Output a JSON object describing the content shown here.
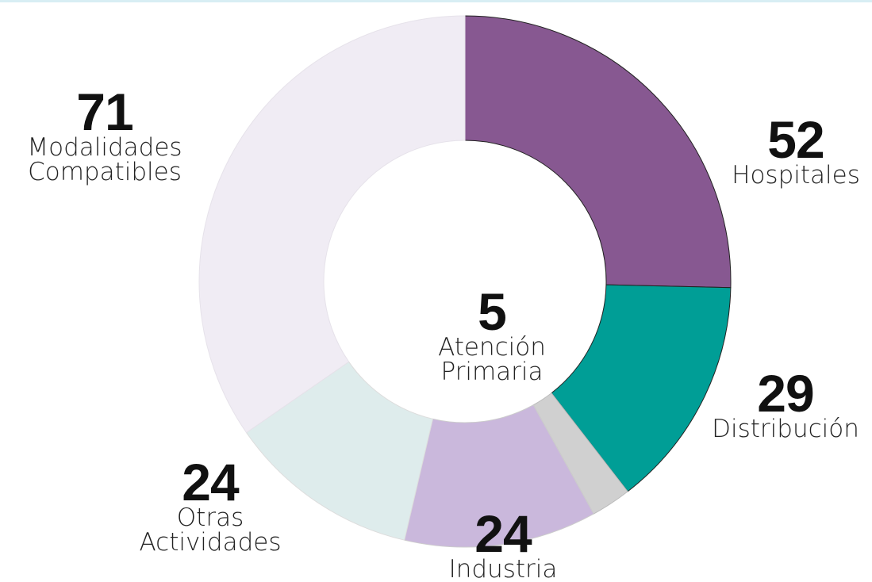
{
  "chart_data": {
    "type": "donut",
    "categories": [
      "Hospitales",
      "Distribución",
      "Atención Primaria",
      "Industria",
      "Otras Actividades",
      "Modalidades Compatibles"
    ],
    "values": [
      52,
      29,
      5,
      24,
      24,
      71
    ],
    "colors": [
      "#875891",
      "#009e96",
      "#d0d0d0",
      "#cab8dc",
      "#deecec",
      "#f0ecf4"
    ]
  }
}
